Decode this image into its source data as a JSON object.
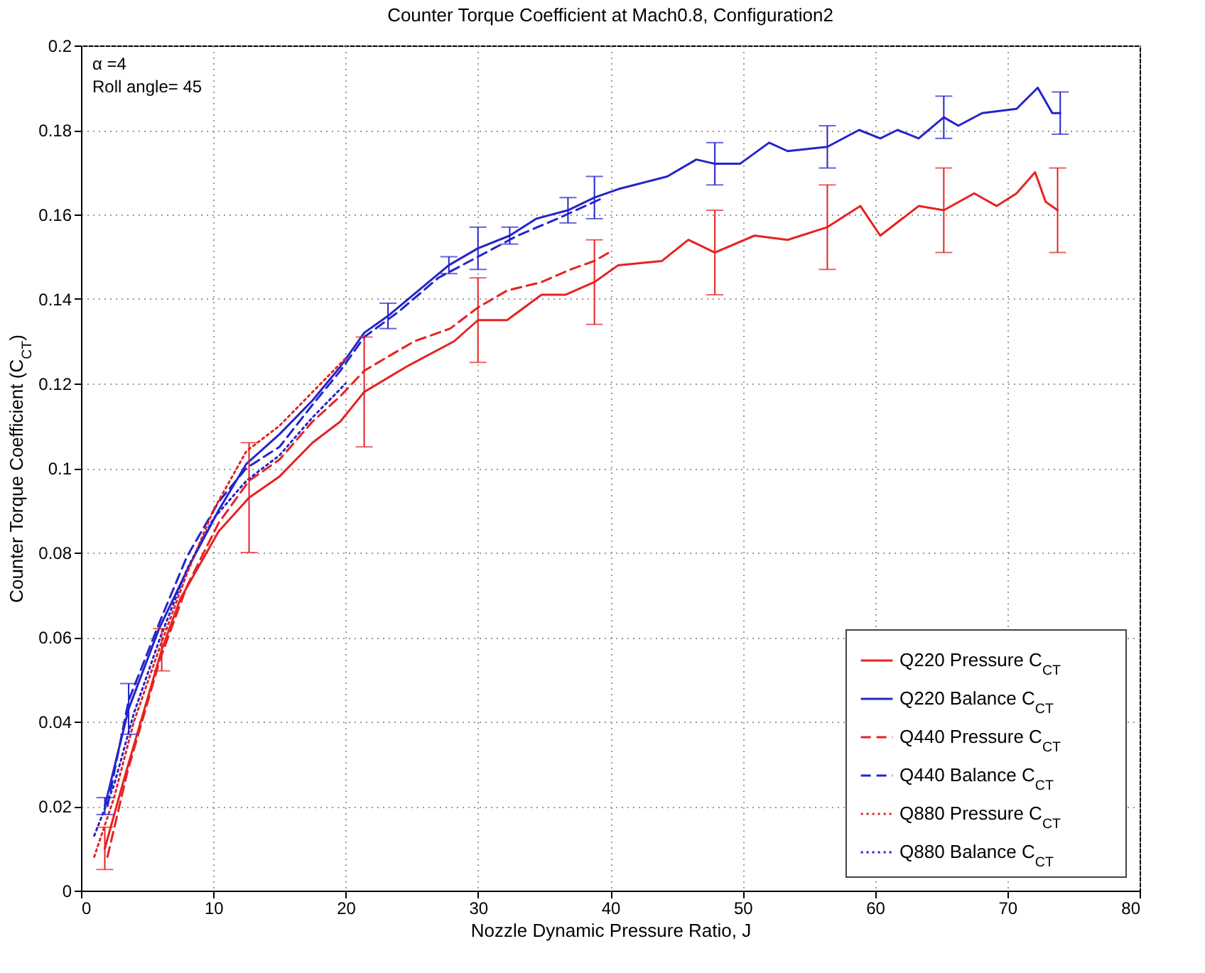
{
  "chart_data": {
    "type": "line",
    "title": "Counter Torque Coefficient at Mach0.8, Configuration2",
    "xlabel": "Nozzle Dynamic Pressure Ratio, J",
    "ylabel": "Counter Torque Coefficient (C$_{CT}$)",
    "annotations": [
      "α =4",
      "Roll angle= 45"
    ],
    "xlim": [
      0,
      80
    ],
    "xticks": [
      0,
      10,
      20,
      30,
      40,
      50,
      60,
      70,
      80
    ],
    "ylim": [
      0,
      0.2
    ],
    "yticks": [
      0,
      0.02,
      0.04,
      0.06,
      0.08,
      0.1,
      0.12,
      0.14,
      0.16,
      0.18,
      0.2
    ],
    "grid": true,
    "legend": "bottom right",
    "series": [
      {
        "name": "Q220 Pressure C$_{CT}$",
        "color": "#e62222",
        "line_style": "solid",
        "x": [
          1.8,
          3.4,
          6.1,
          7.5,
          10.4,
          12.7,
          15,
          17.5,
          19.6,
          21.4,
          24.6,
          28.2,
          30,
          32.2,
          34.8,
          36.6,
          38.8,
          40.6,
          43.9,
          45.9,
          47.9,
          50.9,
          53.4,
          56.4,
          58.9,
          60.4,
          63.3,
          65.2,
          67.5,
          69.2,
          70.7,
          72.1,
          72.9,
          73.8
        ],
        "values": [
          0.01,
          0.028,
          0.057,
          0.069,
          0.085,
          0.093,
          0.098,
          0.106,
          0.111,
          0.118,
          0.124,
          0.13,
          0.135,
          0.135,
          0.141,
          0.141,
          0.144,
          0.148,
          0.149,
          0.154,
          0.151,
          0.155,
          0.154,
          0.157,
          0.162,
          0.155,
          0.162,
          0.161,
          0.165,
          0.162,
          0.165,
          0.17,
          0.163,
          0.161
        ],
        "errors": [
          0.005,
          null,
          0.005,
          null,
          null,
          0.013,
          null,
          null,
          null,
          0.013,
          null,
          null,
          0.01,
          null,
          null,
          null,
          0.01,
          null,
          null,
          null,
          0.01,
          null,
          null,
          0.01,
          null,
          null,
          null,
          0.01,
          null,
          null,
          null,
          null,
          null,
          0.01
        ]
      },
      {
        "name": "Q220 Balance C$_{CT}$",
        "color": "#2424cc",
        "line_style": "solid",
        "x": [
          1.8,
          3.6,
          5.9,
          8.2,
          10.4,
          12.5,
          15,
          17.5,
          19.6,
          21.4,
          23.2,
          25.5,
          27.8,
          30,
          32.4,
          34.4,
          36.8,
          38.8,
          40.6,
          44.3,
          46.5,
          47.9,
          49.8,
          52,
          53.4,
          56.4,
          58.8,
          60.4,
          61.7,
          63.3,
          65.2,
          66.3,
          68.1,
          70.7,
          72.3,
          73.4,
          74
        ],
        "values": [
          0.02,
          0.043,
          0.062,
          0.077,
          0.09,
          0.101,
          0.108,
          0.116,
          0.124,
          0.132,
          0.136,
          0.142,
          0.148,
          0.152,
          0.155,
          0.159,
          0.161,
          0.164,
          0.166,
          0.169,
          0.173,
          0.172,
          0.172,
          0.177,
          0.175,
          0.176,
          0.18,
          0.178,
          0.18,
          0.178,
          0.183,
          0.181,
          0.184,
          0.185,
          0.19,
          0.184,
          0.184
        ],
        "errors": [
          0.002,
          0.006,
          null,
          null,
          null,
          null,
          null,
          null,
          null,
          null,
          0.003,
          null,
          0.002,
          0.005,
          0.002,
          null,
          0.003,
          0.005,
          null,
          null,
          null,
          0.005,
          null,
          null,
          null,
          0.005,
          null,
          null,
          null,
          null,
          0.005,
          null,
          null,
          null,
          null,
          null,
          0.005
        ]
      },
      {
        "name": "Q440 Pressure C$_{CT}$",
        "color": "#e62222",
        "line_style": "dashed",
        "x": [
          2,
          3.5,
          6,
          8,
          10.4,
          12.7,
          15,
          17.5,
          19.6,
          21.4,
          23,
          25.2,
          27.9,
          30,
          32.2,
          34.8,
          37,
          38.8,
          39.9
        ],
        "values": [
          0.008,
          0.028,
          0.055,
          0.072,
          0.087,
          0.097,
          0.102,
          0.111,
          0.117,
          0.123,
          0.126,
          0.13,
          0.133,
          0.138,
          0.142,
          0.144,
          0.147,
          0.149,
          0.151
        ]
      },
      {
        "name": "Q440 Balance C$_{CT}$",
        "color": "#2424cc",
        "line_style": "dashed",
        "x": [
          2,
          3.6,
          6,
          8,
          10.4,
          12.5,
          15,
          17.5,
          19.6,
          21.4,
          24,
          27,
          30,
          33,
          36,
          39.5
        ],
        "values": [
          0.02,
          0.045,
          0.064,
          0.079,
          0.092,
          0.1,
          0.105,
          0.115,
          0.123,
          0.131,
          0.137,
          0.145,
          0.15,
          0.155,
          0.159,
          0.164
        ]
      },
      {
        "name": "Q880 Pressure C$_{CT}$",
        "color": "#e62222",
        "line_style": "dotted",
        "x": [
          1,
          2.5,
          4,
          6,
          8,
          10,
          12.5,
          15,
          17.5,
          20
        ],
        "values": [
          0.008,
          0.022,
          0.04,
          0.058,
          0.075,
          0.09,
          0.104,
          0.11,
          0.118,
          0.126
        ]
      },
      {
        "name": "Q880 Balance C$_{CT}$",
        "color": "#2424cc",
        "line_style": "dotted",
        "x": [
          1,
          2.5,
          4,
          6,
          8,
          10,
          12.5,
          15,
          17.5,
          20
        ],
        "values": [
          0.013,
          0.025,
          0.042,
          0.06,
          0.076,
          0.088,
          0.097,
          0.103,
          0.112,
          0.12
        ]
      }
    ]
  }
}
